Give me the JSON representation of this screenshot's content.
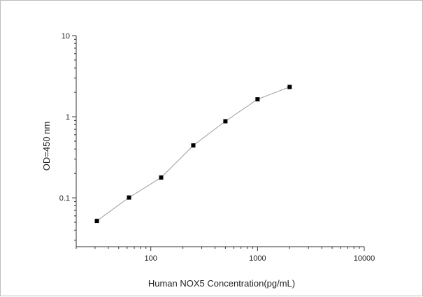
{
  "chart_data": {
    "type": "line",
    "xlabel": "Human NOX5 Concentration(pg/mL)",
    "ylabel": "OD=450 nm",
    "x_scale": "log",
    "y_scale": "log",
    "xlim": [
      20,
      10000
    ],
    "ylim": [
      0.025,
      10
    ],
    "x_ticks": [
      {
        "value": 100,
        "label": "100"
      },
      {
        "value": 1000,
        "label": "1000"
      },
      {
        "value": 10000,
        "label": "10000"
      }
    ],
    "y_ticks": [
      {
        "value": 0.1,
        "label": "0.1"
      },
      {
        "value": 1,
        "label": "1"
      },
      {
        "value": 10,
        "label": "10"
      }
    ],
    "grid": false,
    "line_color": "#9a9a9a",
    "marker_color": "#000000",
    "series": [
      {
        "x": [
          31.25,
          62.5,
          125,
          250,
          500,
          1000,
          2000
        ],
        "y": [
          0.052,
          0.101,
          0.178,
          0.443,
          0.88,
          1.64,
          2.33
        ]
      }
    ]
  }
}
